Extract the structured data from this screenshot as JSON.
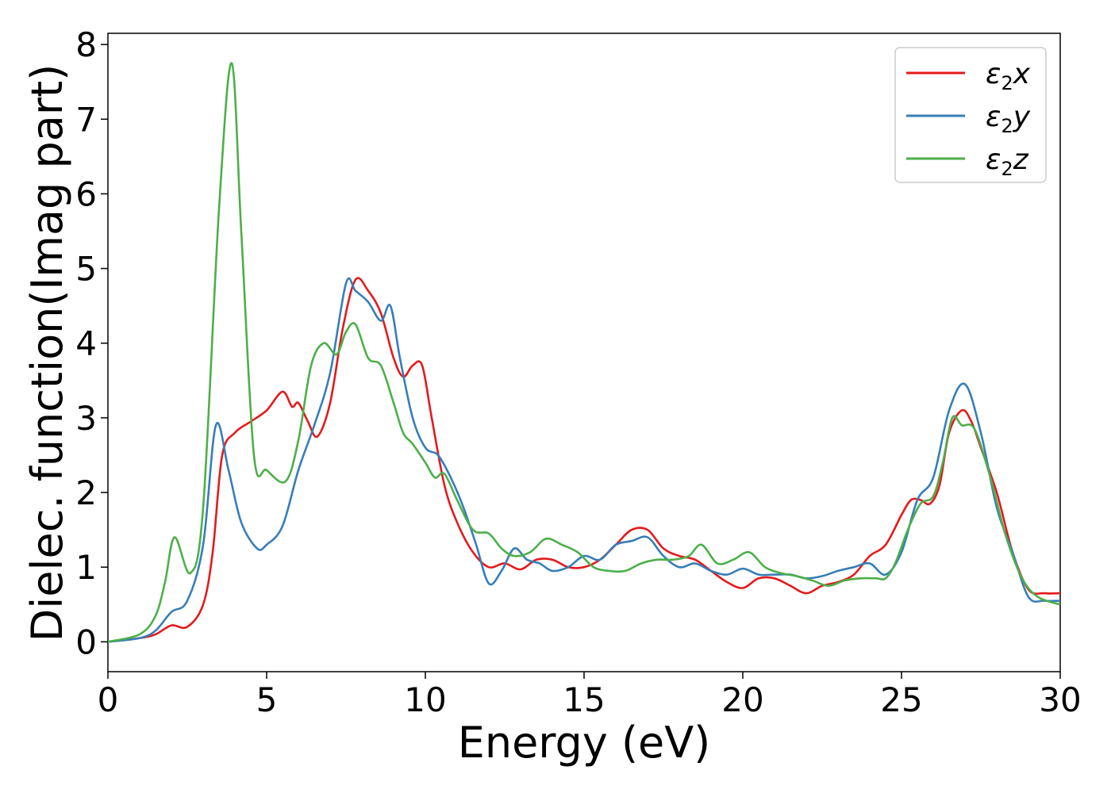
{
  "chart_data": {
    "type": "line",
    "xlabel": "Energy (eV)",
    "ylabel": "Dielec. function(Imag part)",
    "xlim": [
      0,
      30
    ],
    "ylim": [
      -0.4,
      8.15
    ],
    "xticks": [
      "0",
      "5",
      "10",
      "15",
      "20",
      "25",
      "30"
    ],
    "yticks": [
      "0",
      "1",
      "2",
      "3",
      "4",
      "5",
      "6",
      "7",
      "8"
    ],
    "grid": false,
    "legend_position": "top-right",
    "series": [
      {
        "name": "ε2x",
        "legend_base": "ε",
        "legend_sub": "2",
        "legend_suffix": "x",
        "color": "#e41a1c",
        "x": [
          0,
          1,
          1.5,
          2,
          2.5,
          3,
          3.3,
          3.6,
          4,
          4.5,
          5,
          5.5,
          5.8,
          6,
          6.3,
          6.6,
          7,
          7.4,
          7.8,
          8.2,
          8.6,
          9,
          9.3,
          9.6,
          9.9,
          10.2,
          10.6,
          11,
          11.5,
          12,
          12.5,
          13,
          13.5,
          14,
          14.5,
          15,
          15.5,
          16,
          16.5,
          17,
          17.5,
          18,
          18.5,
          19,
          19.5,
          20,
          20.5,
          21,
          21.5,
          22,
          22.5,
          23,
          23.5,
          24,
          24.5,
          25,
          25.3,
          25.6,
          25.9,
          26.2,
          26.5,
          26.9,
          27.2,
          27.5,
          28,
          28.5,
          29,
          29.5,
          30
        ],
        "y": [
          0,
          0.05,
          0.1,
          0.22,
          0.2,
          0.5,
          1.2,
          2.5,
          2.8,
          2.95,
          3.1,
          3.35,
          3.15,
          3.2,
          2.95,
          2.75,
          3.2,
          4.2,
          4.85,
          4.7,
          4.4,
          3.8,
          3.55,
          3.7,
          3.7,
          3,
          2.1,
          1.6,
          1.2,
          1.0,
          1.05,
          0.97,
          1.1,
          1.1,
          1.0,
          1.0,
          1.1,
          1.3,
          1.5,
          1.5,
          1.25,
          1.15,
          1.1,
          0.95,
          0.8,
          0.72,
          0.85,
          0.85,
          0.75,
          0.65,
          0.75,
          0.8,
          0.9,
          1.15,
          1.3,
          1.7,
          1.9,
          1.9,
          1.85,
          2.1,
          2.8,
          3.1,
          2.95,
          2.6,
          2.0,
          1.2,
          0.7,
          0.65,
          0.65
        ]
      },
      {
        "name": "ε2y",
        "legend_base": "ε",
        "legend_sub": "2",
        "legend_suffix": "y",
        "color": "#377eb8",
        "x": [
          0,
          1,
          1.5,
          2,
          2.5,
          3,
          3.4,
          3.8,
          4.2,
          4.7,
          5,
          5.5,
          6,
          6.5,
          7,
          7.5,
          7.8,
          8.2,
          8.6,
          8.9,
          9.2,
          9.6,
          10,
          10.4,
          10.8,
          11.2,
          11.6,
          12,
          12.4,
          12.8,
          13.2,
          13.6,
          14,
          14.5,
          15,
          15.5,
          16,
          16.5,
          17,
          17.5,
          18,
          18.5,
          19,
          19.5,
          20,
          20.5,
          21,
          21.5,
          22,
          22.5,
          23,
          23.5,
          24,
          24.5,
          25,
          25.5,
          26,
          26.5,
          27,
          27.5,
          28,
          28.5,
          29,
          29.5,
          30
        ],
        "y": [
          0,
          0.05,
          0.15,
          0.4,
          0.55,
          1.3,
          2.9,
          2.3,
          1.6,
          1.25,
          1.3,
          1.55,
          2.3,
          2.9,
          3.6,
          4.8,
          4.7,
          4.55,
          4.3,
          4.5,
          3.8,
          3.0,
          2.6,
          2.5,
          2.2,
          1.8,
          1.3,
          0.78,
          0.95,
          1.25,
          1.1,
          1.05,
          0.95,
          1.0,
          1.15,
          1.1,
          1.3,
          1.35,
          1.4,
          1.15,
          1.0,
          1.05,
          0.95,
          0.9,
          0.98,
          0.9,
          0.9,
          0.9,
          0.85,
          0.88,
          0.95,
          1.0,
          1.05,
          0.9,
          1.2,
          1.9,
          2.2,
          3.1,
          3.45,
          2.8,
          1.8,
          1.2,
          0.6,
          0.55,
          0.55
        ]
      },
      {
        "name": "ε2z",
        "legend_base": "ε",
        "legend_sub": "2",
        "legend_suffix": "z",
        "color": "#4daf4a",
        "x": [
          0,
          1,
          1.5,
          1.8,
          2.1,
          2.6,
          3,
          3.5,
          3.9,
          4.2,
          4.6,
          5,
          5.6,
          6,
          6.4,
          6.8,
          7.2,
          7.5,
          7.8,
          8.2,
          8.6,
          9,
          9.3,
          9.6,
          10,
          10.3,
          10.6,
          11,
          11.5,
          12,
          12.4,
          12.8,
          13.3,
          13.8,
          14.3,
          14.8,
          15.3,
          15.8,
          16.3,
          16.8,
          17.3,
          17.8,
          18.3,
          18.7,
          19.2,
          19.7,
          20.2,
          20.7,
          21.2,
          21.7,
          22.2,
          22.7,
          23.2,
          23.7,
          24.2,
          24.5,
          24.8,
          25.2,
          25.6,
          26,
          26.3,
          26.6,
          26.9,
          27.3,
          27.8,
          28.3,
          28.8,
          29.3,
          30
        ],
        "y": [
          0,
          0.1,
          0.35,
          0.8,
          1.4,
          0.92,
          1.8,
          5.8,
          7.75,
          5.5,
          2.5,
          2.3,
          2.15,
          2.7,
          3.7,
          4.0,
          3.85,
          4.15,
          4.25,
          3.8,
          3.7,
          3.2,
          2.8,
          2.65,
          2.4,
          2.2,
          2.25,
          1.9,
          1.5,
          1.45,
          1.25,
          1.15,
          1.2,
          1.38,
          1.3,
          1.2,
          1.0,
          0.95,
          0.95,
          1.05,
          1.1,
          1.1,
          1.15,
          1.3,
          1.05,
          1.1,
          1.2,
          1.0,
          0.92,
          0.88,
          0.82,
          0.75,
          0.82,
          0.85,
          0.85,
          0.85,
          1.05,
          1.5,
          1.85,
          1.95,
          2.4,
          3.0,
          2.9,
          2.85,
          2.2,
          1.4,
          0.85,
          0.6,
          0.5
        ]
      }
    ]
  }
}
